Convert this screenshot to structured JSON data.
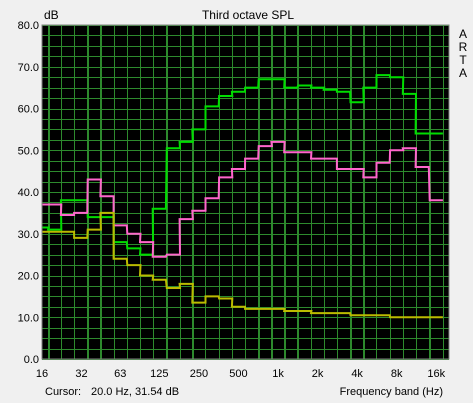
{
  "chart_data": {
    "type": "line",
    "step": true,
    "title": "Third octave SPL",
    "ylabel": "dB",
    "xlabel": "Frequency band (Hz)",
    "brand_letters": [
      "A",
      "R",
      "T",
      "A"
    ],
    "ylim": [
      0,
      80
    ],
    "y_ticks": [
      "0.0",
      "10.0",
      "20.0",
      "30.0",
      "40.0",
      "50.0",
      "60.0",
      "70.0",
      "80.0"
    ],
    "x_scale": "log",
    "xlim": [
      16,
      20000
    ],
    "x_ticks": [
      {
        "label": "16",
        "value": 16
      },
      {
        "label": "32",
        "value": 32
      },
      {
        "label": "63",
        "value": 63
      },
      {
        "label": "125",
        "value": 125
      },
      {
        "label": "250",
        "value": 250
      },
      {
        "label": "500",
        "value": 500
      },
      {
        "label": "1k",
        "value": 1000
      },
      {
        "label": "2k",
        "value": 2000
      },
      {
        "label": "4k",
        "value": 4000
      },
      {
        "label": "8k",
        "value": 8000
      },
      {
        "label": "16k",
        "value": 16000
      }
    ],
    "bands": [
      16,
      20,
      25,
      31.5,
      40,
      50,
      63,
      80,
      100,
      125,
      160,
      200,
      250,
      315,
      400,
      500,
      630,
      800,
      1000,
      1250,
      1600,
      2000,
      2500,
      3150,
      4000,
      5000,
      6300,
      8000,
      10000,
      12500,
      16000
    ],
    "series": [
      {
        "color": "#00dd00",
        "values": [
          31.5,
          31.0,
          38.0,
          38.0,
          34.0,
          34.0,
          28.0,
          26.5,
          25.0,
          36.0,
          50.5,
          52.0,
          55.0,
          60.5,
          63.0,
          64.0,
          65.0,
          67.0,
          67.0,
          65.0,
          65.5,
          65.0,
          64.5,
          64.0,
          61.5,
          65.0,
          68.0,
          67.5,
          63.5,
          54.0,
          54.0
        ]
      },
      {
        "color": "#ff66cc",
        "values": [
          37.0,
          37.0,
          34.5,
          35.0,
          43.0,
          39.0,
          32.0,
          30.0,
          28.0,
          24.5,
          25.0,
          33.5,
          35.5,
          38.5,
          43.5,
          45.5,
          48.0,
          51.0,
          52.0,
          49.5,
          49.5,
          48.0,
          48.0,
          45.5,
          45.5,
          43.5,
          47.0,
          50.0,
          50.5,
          46.0,
          38.0
        ]
      },
      {
        "color": "#bbbb00",
        "values": [
          30.5,
          30.5,
          30.5,
          29.0,
          31.0,
          35.0,
          24.0,
          22.5,
          20.0,
          19.0,
          17.0,
          18.0,
          13.5,
          15.0,
          14.5,
          12.5,
          12.0,
          12.0,
          12.0,
          11.5,
          11.5,
          11.0,
          11.0,
          11.0,
          10.5,
          10.5,
          10.5,
          10.0,
          10.0,
          10.0,
          10.0
        ]
      }
    ]
  },
  "status": {
    "cursor_label": "Cursor:",
    "cursor_value": "20.0 Hz, 31.54 dB"
  },
  "colors": {
    "plot_bg": "#000000",
    "grid": "#2d8a2d",
    "frame_bg": "#f0f0f0"
  }
}
